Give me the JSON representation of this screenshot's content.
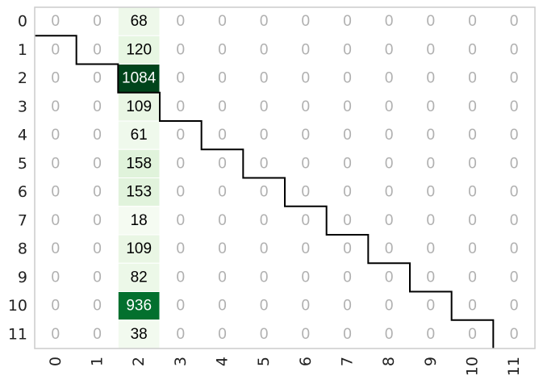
{
  "chart_data": {
    "type": "heatmap",
    "title": "",
    "xlabel": "",
    "ylabel": "",
    "x_tick_labels": [
      "0",
      "1",
      "2",
      "3",
      "4",
      "5",
      "6",
      "7",
      "8",
      "9",
      "10",
      "11"
    ],
    "y_tick_labels": [
      "0",
      "1",
      "2",
      "3",
      "4",
      "5",
      "6",
      "7",
      "8",
      "9",
      "10",
      "11"
    ],
    "matrix": [
      [
        0,
        0,
        68,
        0,
        0,
        0,
        0,
        0,
        0,
        0,
        0,
        0
      ],
      [
        0,
        0,
        120,
        0,
        0,
        0,
        0,
        0,
        0,
        0,
        0,
        0
      ],
      [
        0,
        0,
        1084,
        0,
        0,
        0,
        0,
        0,
        0,
        0,
        0,
        0
      ],
      [
        0,
        0,
        109,
        0,
        0,
        0,
        0,
        0,
        0,
        0,
        0,
        0
      ],
      [
        0,
        0,
        61,
        0,
        0,
        0,
        0,
        0,
        0,
        0,
        0,
        0
      ],
      [
        0,
        0,
        158,
        0,
        0,
        0,
        0,
        0,
        0,
        0,
        0,
        0
      ],
      [
        0,
        0,
        153,
        0,
        0,
        0,
        0,
        0,
        0,
        0,
        0,
        0
      ],
      [
        0,
        0,
        18,
        0,
        0,
        0,
        0,
        0,
        0,
        0,
        0,
        0
      ],
      [
        0,
        0,
        109,
        0,
        0,
        0,
        0,
        0,
        0,
        0,
        0,
        0
      ],
      [
        0,
        0,
        82,
        0,
        0,
        0,
        0,
        0,
        0,
        0,
        0,
        0
      ],
      [
        0,
        0,
        936,
        0,
        0,
        0,
        0,
        0,
        0,
        0,
        0,
        0
      ],
      [
        0,
        0,
        38,
        0,
        0,
        0,
        0,
        0,
        0,
        0,
        0,
        0
      ]
    ],
    "colormap": "Greens",
    "zero_text_color": "#b0b0b0",
    "dark_text_color": "#000000",
    "light_text_color": "#ffffff",
    "boundary_line_color": "#000000",
    "frame_color": "#cccccc",
    "grid": false,
    "legend": "none",
    "staircase_boundary": true
  }
}
